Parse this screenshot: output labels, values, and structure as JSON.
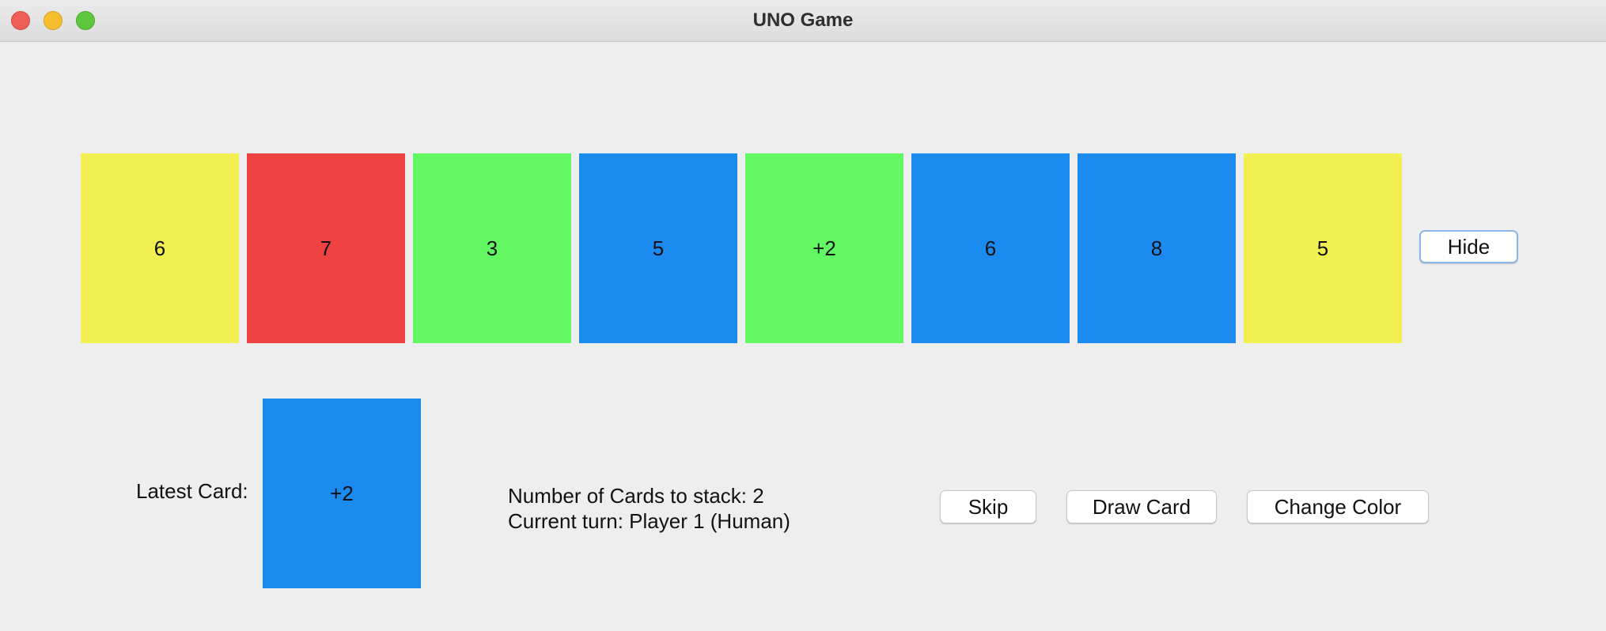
{
  "window": {
    "title": "UNO Game"
  },
  "hand": {
    "cards": [
      {
        "label": "6",
        "color": "#f2ef52"
      },
      {
        "label": "7",
        "color": "#ef4243"
      },
      {
        "label": "3",
        "color": "#63f763"
      },
      {
        "label": "5",
        "color": "#1b8bef"
      },
      {
        "label": "+2",
        "color": "#63f763"
      },
      {
        "label": "6",
        "color": "#1b8bef"
      },
      {
        "label": "8",
        "color": "#1b8bef"
      },
      {
        "label": "5",
        "color": "#f2ef52"
      }
    ],
    "hide_label": "Hide"
  },
  "status": {
    "latest_card_label": "Latest Card:",
    "latest_card": {
      "label": "+2",
      "color": "#1b8bef"
    },
    "stack_text": "Number of Cards to stack: 2",
    "turn_text": "Current turn: Player 1 (Human)"
  },
  "actions": {
    "skip_label": "Skip",
    "draw_label": "Draw Card",
    "change_color_label": "Change Color"
  }
}
